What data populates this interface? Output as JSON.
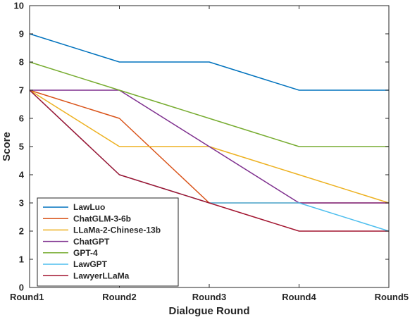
{
  "chart_data": {
    "type": "line",
    "categories": [
      "Round1",
      "Round2",
      "Round3",
      "Round4",
      "Round5"
    ],
    "xlabel": "Dialogue Round",
    "ylabel": "Score",
    "ylim": [
      0,
      10
    ],
    "yticks": [
      0,
      1,
      2,
      3,
      4,
      5,
      6,
      7,
      8,
      9,
      10
    ],
    "grid": false,
    "legend_position": "bottom-left",
    "series": [
      {
        "name": "LawLuo",
        "color": "#0072BD",
        "values": [
          9,
          8,
          8,
          7,
          7
        ]
      },
      {
        "name": "ChatGLM-3-6b",
        "color": "#D95319",
        "values": [
          7,
          6,
          3,
          3,
          3
        ]
      },
      {
        "name": "LLaMa-2-Chinese-13b",
        "color": "#EDB120",
        "values": [
          7,
          5,
          5,
          4,
          3
        ]
      },
      {
        "name": "ChatGPT",
        "color": "#7E2F8E",
        "values": [
          7,
          7,
          5,
          3,
          3
        ]
      },
      {
        "name": "GPT-4",
        "color": "#77AC30",
        "values": [
          8,
          7,
          6,
          5,
          5
        ]
      },
      {
        "name": "LawGPT",
        "color": "#4DBEEE",
        "values": [
          7,
          4,
          3,
          3,
          2
        ]
      },
      {
        "name": "LawyerLLaMa",
        "color": "#A2142F",
        "values": [
          7,
          4,
          3,
          2,
          2
        ]
      }
    ]
  }
}
